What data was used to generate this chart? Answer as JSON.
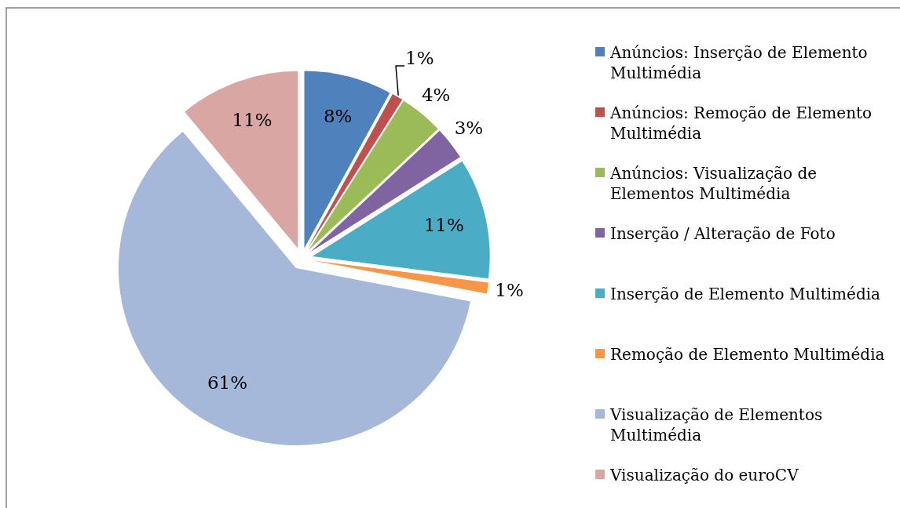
{
  "chart_data": {
    "type": "pie",
    "categories": [
      "Anúncios: Inserção de Elemento Multimédia",
      "Anúncios: Remoção de Elemento Multimédia",
      "Anúncios: Visualização de Elementos Multimédia",
      "Inserção / Alteração de Foto",
      "Inserção de Elemento Multimédia",
      "Remoção de Elemento Multimédia",
      "Visualização de Elementos Multimédia",
      "Visualização do euroCV"
    ],
    "values": [
      8,
      1,
      4,
      3,
      11,
      1,
      61,
      11
    ],
    "colors": [
      "#4f81bd",
      "#c0504d",
      "#9bbb59",
      "#8064a2",
      "#4bacc6",
      "#f79646",
      "#a5b8da",
      "#d9a6a4"
    ],
    "value_labels": [
      "8%",
      "1%",
      "4%",
      "3%",
      "11%",
      "1%",
      "61%",
      "11%"
    ],
    "legend": "right"
  }
}
